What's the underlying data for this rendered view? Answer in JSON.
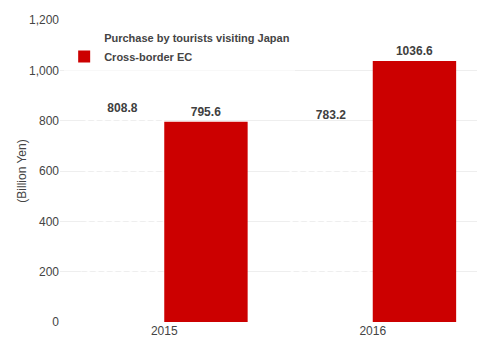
{
  "chart_data": {
    "type": "bar",
    "categories": [
      "2015",
      "2016"
    ],
    "series": [
      {
        "name": "Purchase by tourists visiting Japan",
        "color": "#C8A000",
        "values": [
          808.8,
          783.2
        ]
      },
      {
        "name": "Cross-border EC",
        "color": "#CC0000",
        "values": [
          795.6,
          1036.6
        ]
      }
    ],
    "ylabel": "(Billion Yen)",
    "ylim": [
      0,
      1200
    ],
    "yticks": [
      0,
      200,
      400,
      600,
      800,
      {
        "value": 1000,
        "label": "1,000"
      },
      {
        "value": 1200,
        "label": "1,200"
      }
    ],
    "grid": true,
    "legend": "upper left",
    "data_labels": true
  }
}
